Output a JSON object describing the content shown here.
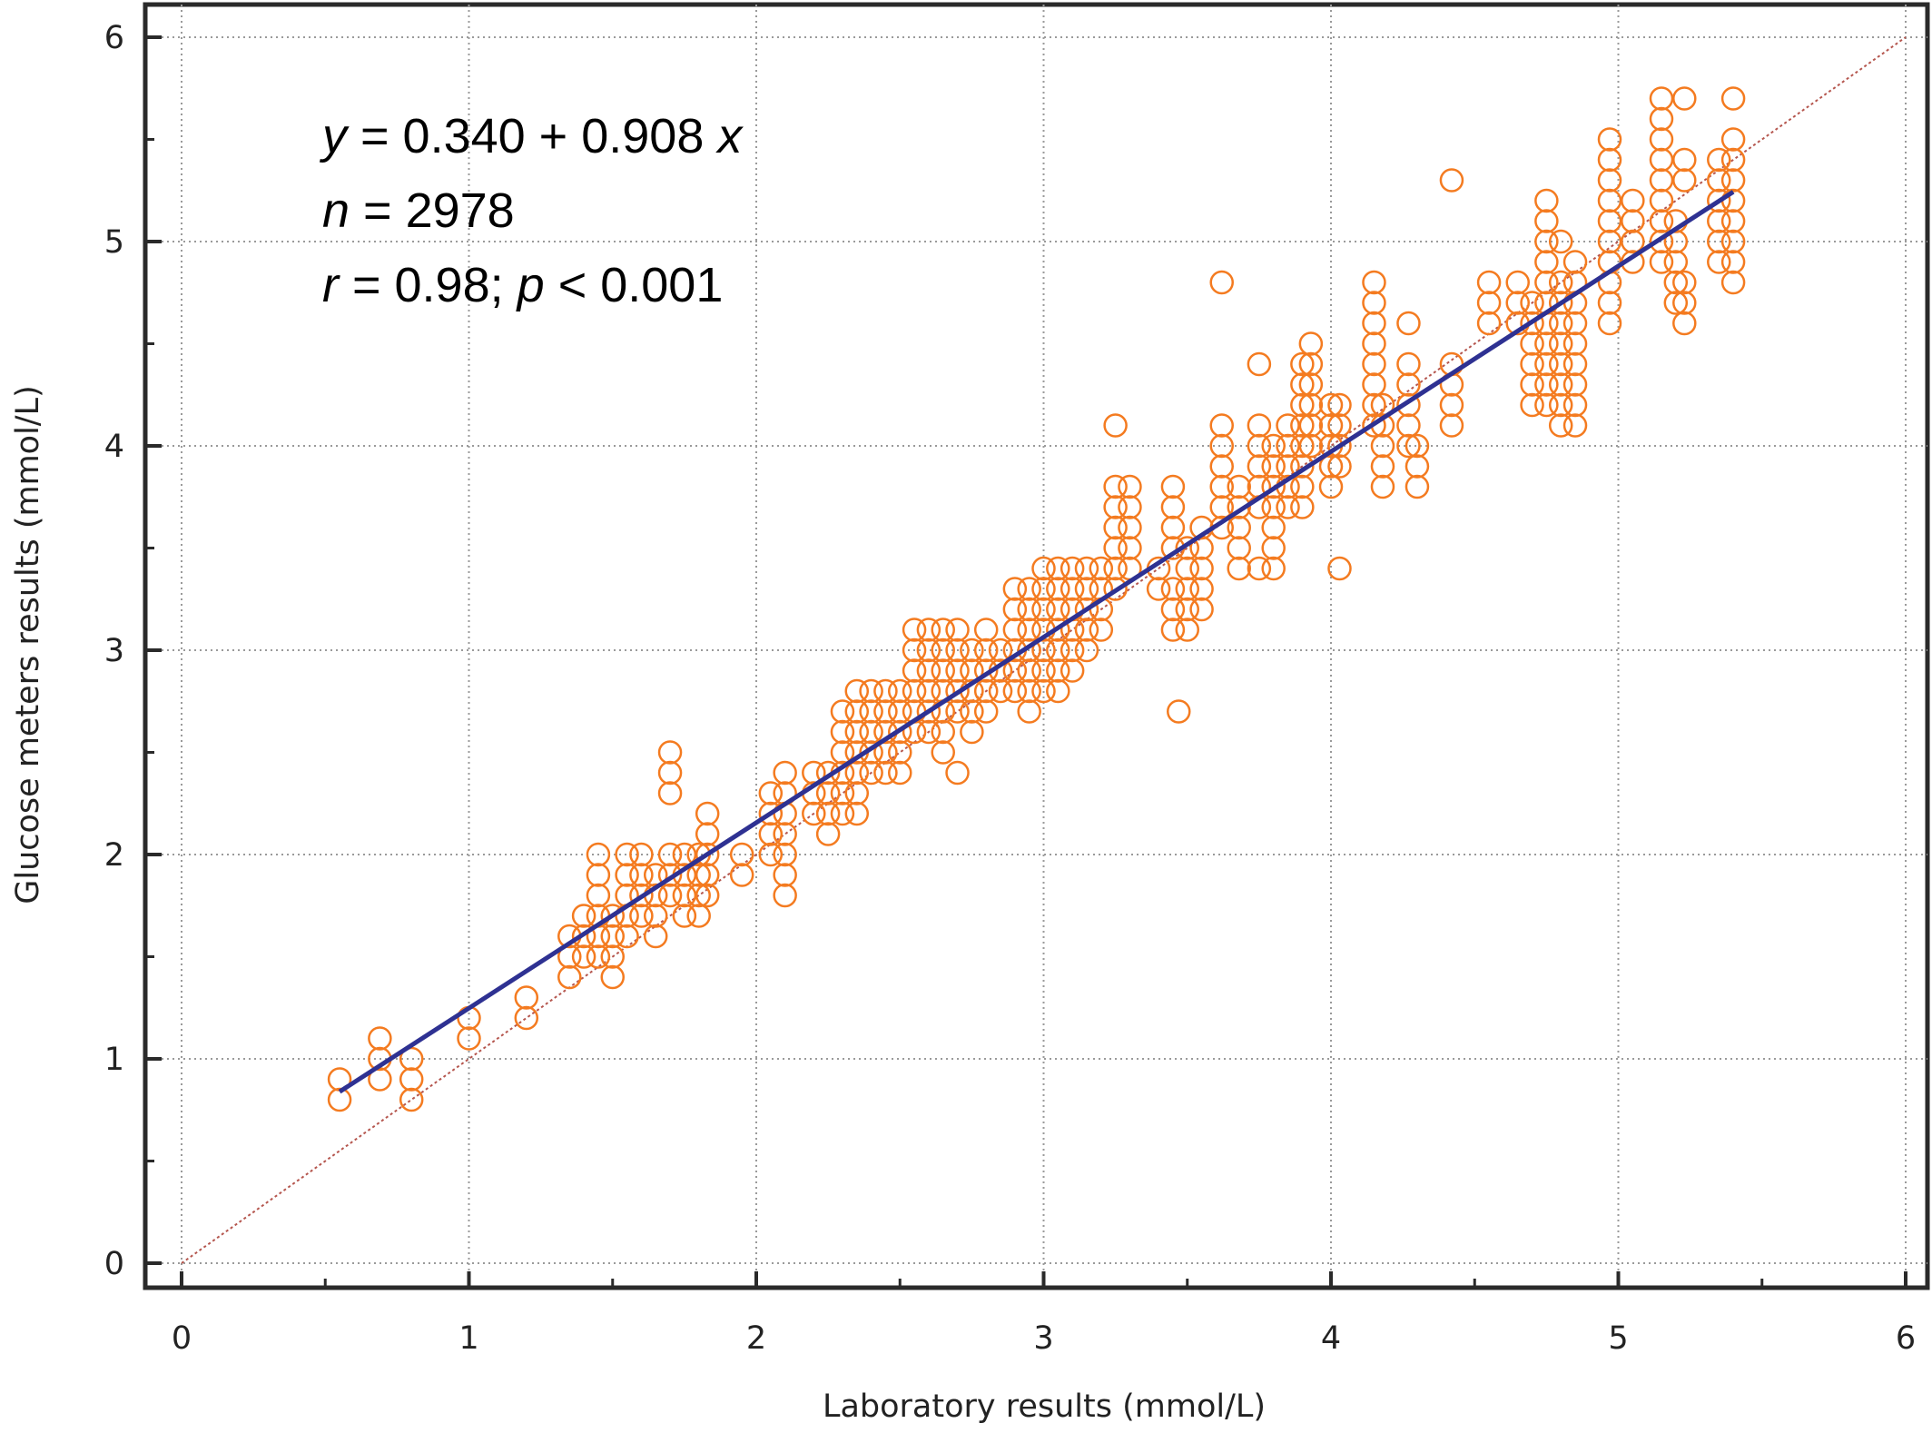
{
  "chart_data": {
    "type": "scatter",
    "title": "",
    "xlabel": "Laboratory results (mmol/L)",
    "ylabel": "Glucose meters results (mmol/L)",
    "xlim": [
      0,
      6
    ],
    "ylim": [
      0,
      6
    ],
    "x_ticks": [
      "0",
      "1",
      "2",
      "3",
      "4",
      "5",
      "6"
    ],
    "y_ticks": [
      "0",
      "1",
      "2",
      "3",
      "4",
      "5",
      "6"
    ],
    "grid": true,
    "grid_style": "dotted",
    "annotations": {
      "equation": {
        "var_y": "y",
        "mid": " = 0.340 + 0.908 ",
        "var_x": "x"
      },
      "n": {
        "var": "n",
        "rest": " = 2978"
      },
      "r": {
        "var_r": "r",
        "mid": " = 0.98; ",
        "var_p": "p",
        "rest": " < 0.001"
      }
    },
    "regression": {
      "intercept": 0.34,
      "slope": 0.908,
      "x_range": [
        0.55,
        5.4
      ],
      "color": "#2e3192"
    },
    "identity_line": {
      "x_range": [
        0,
        6
      ],
      "color": "#b5564e"
    },
    "marker_color": "#f47b20",
    "series": [
      {
        "marker": "open-circle",
        "color": "#f47b20",
        "columns": [
          {
            "x": 0.55,
            "y": [
              0.8,
              0.9
            ]
          },
          {
            "x": 0.69,
            "y": [
              0.9,
              1.0,
              1.1
            ]
          },
          {
            "x": 0.8,
            "y": [
              0.8,
              0.9,
              1.0
            ]
          },
          {
            "x": 1.0,
            "y": [
              1.1,
              1.2
            ]
          },
          {
            "x": 1.2,
            "y": [
              1.2,
              1.3
            ]
          },
          {
            "x": 1.35,
            "y": [
              1.4,
              1.5,
              1.6
            ]
          },
          {
            "x": 1.4,
            "y": [
              1.5,
              1.6,
              1.7
            ]
          },
          {
            "x": 1.45,
            "y": [
              1.5,
              1.6,
              1.7,
              1.8,
              1.9,
              2.0
            ]
          },
          {
            "x": 1.5,
            "y": [
              1.4,
              1.5,
              1.6,
              1.7
            ]
          },
          {
            "x": 1.55,
            "y": [
              1.6,
              1.7,
              1.8,
              1.9,
              2.0
            ]
          },
          {
            "x": 1.6,
            "y": [
              1.7,
              1.8,
              1.9,
              2.0
            ]
          },
          {
            "x": 1.65,
            "y": [
              1.6,
              1.7,
              1.8,
              1.9
            ]
          },
          {
            "x": 1.7,
            "y": [
              1.8,
              1.9,
              2.0,
              2.3,
              2.4,
              2.5
            ]
          },
          {
            "x": 1.75,
            "y": [
              1.7,
              1.8,
              1.9,
              2.0
            ]
          },
          {
            "x": 1.8,
            "y": [
              1.7,
              1.8,
              1.9,
              2.0
            ]
          },
          {
            "x": 1.83,
            "y": [
              1.8,
              1.9,
              2.0,
              2.1,
              2.2
            ]
          },
          {
            "x": 1.95,
            "y": [
              1.9,
              2.0
            ]
          },
          {
            "x": 2.05,
            "y": [
              2.0,
              2.1,
              2.2,
              2.3
            ]
          },
          {
            "x": 2.1,
            "y": [
              1.8,
              1.9,
              2.0,
              2.1,
              2.2,
              2.3,
              2.4
            ]
          },
          {
            "x": 2.2,
            "y": [
              2.2,
              2.3,
              2.4
            ]
          },
          {
            "x": 2.25,
            "y": [
              2.1,
              2.2,
              2.3,
              2.4
            ]
          },
          {
            "x": 2.3,
            "y": [
              2.2,
              2.3,
              2.4,
              2.5,
              2.6,
              2.7
            ]
          },
          {
            "x": 2.35,
            "y": [
              2.2,
              2.3,
              2.4,
              2.5,
              2.6,
              2.7,
              2.8
            ]
          },
          {
            "x": 2.4,
            "y": [
              2.4,
              2.5,
              2.6,
              2.7,
              2.8
            ]
          },
          {
            "x": 2.45,
            "y": [
              2.4,
              2.5,
              2.6,
              2.7,
              2.8
            ]
          },
          {
            "x": 2.5,
            "y": [
              2.4,
              2.5,
              2.6,
              2.7,
              2.8
            ]
          },
          {
            "x": 2.55,
            "y": [
              2.6,
              2.7,
              2.8,
              2.9,
              3.0,
              3.1
            ]
          },
          {
            "x": 2.6,
            "y": [
              2.6,
              2.7,
              2.8,
              2.9,
              3.0,
              3.1
            ]
          },
          {
            "x": 2.65,
            "y": [
              2.5,
              2.6,
              2.7,
              2.8,
              2.9,
              3.0,
              3.1
            ]
          },
          {
            "x": 2.7,
            "y": [
              2.4,
              2.7,
              2.8,
              2.9,
              3.0,
              3.1
            ]
          },
          {
            "x": 2.75,
            "y": [
              2.6,
              2.7,
              2.8,
              2.9,
              3.0
            ]
          },
          {
            "x": 2.8,
            "y": [
              2.7,
              2.8,
              2.9,
              3.0,
              3.1
            ]
          },
          {
            "x": 2.85,
            "y": [
              2.8,
              2.9,
              3.0
            ]
          },
          {
            "x": 2.9,
            "y": [
              2.8,
              2.9,
              3.0,
              3.1,
              3.2,
              3.3
            ]
          },
          {
            "x": 2.95,
            "y": [
              2.7,
              2.8,
              2.9,
              3.0,
              3.1,
              3.2,
              3.3
            ]
          },
          {
            "x": 3.0,
            "y": [
              2.8,
              2.9,
              3.0,
              3.1,
              3.2,
              3.3,
              3.4
            ]
          },
          {
            "x": 3.05,
            "y": [
              2.8,
              2.9,
              3.0,
              3.1,
              3.2,
              3.3,
              3.4
            ]
          },
          {
            "x": 3.1,
            "y": [
              2.9,
              3.0,
              3.1,
              3.2,
              3.3,
              3.4
            ]
          },
          {
            "x": 3.15,
            "y": [
              3.0,
              3.1,
              3.2,
              3.3,
              3.4
            ]
          },
          {
            "x": 3.2,
            "y": [
              3.1,
              3.2,
              3.3,
              3.4
            ]
          },
          {
            "x": 3.25,
            "y": [
              3.3,
              3.4,
              3.5,
              3.6,
              3.7,
              3.8,
              4.1
            ]
          },
          {
            "x": 3.3,
            "y": [
              3.4,
              3.5,
              3.6,
              3.7,
              3.8
            ]
          },
          {
            "x": 3.4,
            "y": [
              3.3,
              3.4
            ]
          },
          {
            "x": 3.45,
            "y": [
              3.1,
              3.2,
              3.3,
              3.5,
              3.6,
              3.7,
              3.8
            ]
          },
          {
            "x": 3.47,
            "y": [
              2.7
            ]
          },
          {
            "x": 3.5,
            "y": [
              3.1,
              3.2,
              3.3,
              3.4,
              3.5
            ]
          },
          {
            "x": 3.55,
            "y": [
              3.2,
              3.3,
              3.4,
              3.5,
              3.6
            ]
          },
          {
            "x": 3.62,
            "y": [
              3.6,
              3.7,
              3.8,
              3.9,
              4.0,
              4.1,
              4.8
            ]
          },
          {
            "x": 3.68,
            "y": [
              3.4,
              3.5,
              3.6,
              3.7,
              3.8
            ]
          },
          {
            "x": 3.75,
            "y": [
              3.4,
              3.7,
              3.8,
              3.9,
              4.0,
              4.1,
              4.4
            ]
          },
          {
            "x": 3.8,
            "y": [
              3.4,
              3.5,
              3.6,
              3.7,
              3.8,
              3.9,
              4.0
            ]
          },
          {
            "x": 3.85,
            "y": [
              3.7,
              3.8,
              3.9,
              4.0,
              4.1
            ]
          },
          {
            "x": 3.9,
            "y": [
              3.7,
              3.8,
              3.9,
              4.0,
              4.1,
              4.2,
              4.3,
              4.4
            ]
          },
          {
            "x": 3.93,
            "y": [
              4.0,
              4.1,
              4.2,
              4.3,
              4.4,
              4.5
            ]
          },
          {
            "x": 4.0,
            "y": [
              3.8,
              3.9,
              4.0,
              4.1,
              4.2
            ]
          },
          {
            "x": 4.03,
            "y": [
              3.4,
              3.9,
              4.0,
              4.1,
              4.2
            ]
          },
          {
            "x": 4.15,
            "y": [
              4.1,
              4.2,
              4.3,
              4.4,
              4.5,
              4.6,
              4.7,
              4.8
            ]
          },
          {
            "x": 4.18,
            "y": [
              3.8,
              3.9,
              4.0,
              4.1,
              4.2
            ]
          },
          {
            "x": 4.27,
            "y": [
              4.0,
              4.1,
              4.2,
              4.3,
              4.4,
              4.6
            ]
          },
          {
            "x": 4.3,
            "y": [
              3.8,
              3.9,
              4.0
            ]
          },
          {
            "x": 4.42,
            "y": [
              4.1,
              4.2,
              4.3,
              4.4,
              5.3
            ]
          },
          {
            "x": 4.55,
            "y": [
              4.6,
              4.7,
              4.8
            ]
          },
          {
            "x": 4.65,
            "y": [
              4.6,
              4.7,
              4.8
            ]
          },
          {
            "x": 4.7,
            "y": [
              4.2,
              4.3,
              4.4,
              4.5,
              4.6,
              4.7
            ]
          },
          {
            "x": 4.75,
            "y": [
              4.2,
              4.3,
              4.4,
              4.5,
              4.6,
              4.7,
              4.8,
              4.9,
              5.0,
              5.1,
              5.2
            ]
          },
          {
            "x": 4.8,
            "y": [
              4.1,
              4.2,
              4.3,
              4.4,
              4.5,
              4.6,
              4.7,
              4.8,
              5.0
            ]
          },
          {
            "x": 4.85,
            "y": [
              4.1,
              4.2,
              4.3,
              4.4,
              4.5,
              4.6,
              4.7,
              4.8,
              4.9
            ]
          },
          {
            "x": 4.97,
            "y": [
              4.6,
              4.7,
              4.8,
              4.9,
              5.0,
              5.1,
              5.2,
              5.3,
              5.4,
              5.5
            ]
          },
          {
            "x": 5.05,
            "y": [
              4.9,
              5.0,
              5.1,
              5.2
            ]
          },
          {
            "x": 5.15,
            "y": [
              4.9,
              5.0,
              5.1,
              5.2,
              5.3,
              5.4,
              5.5,
              5.6,
              5.7
            ]
          },
          {
            "x": 5.2,
            "y": [
              4.7,
              4.8,
              4.9,
              5.0,
              5.1
            ]
          },
          {
            "x": 5.23,
            "y": [
              4.6,
              4.7,
              4.8,
              5.3,
              5.4,
              5.7
            ]
          },
          {
            "x": 5.35,
            "y": [
              4.9,
              5.0,
              5.1,
              5.2,
              5.3,
              5.4
            ]
          },
          {
            "x": 5.4,
            "y": [
              4.8,
              4.9,
              5.0,
              5.1,
              5.2,
              5.3,
              5.4,
              5.5,
              5.7
            ]
          }
        ]
      }
    ]
  }
}
